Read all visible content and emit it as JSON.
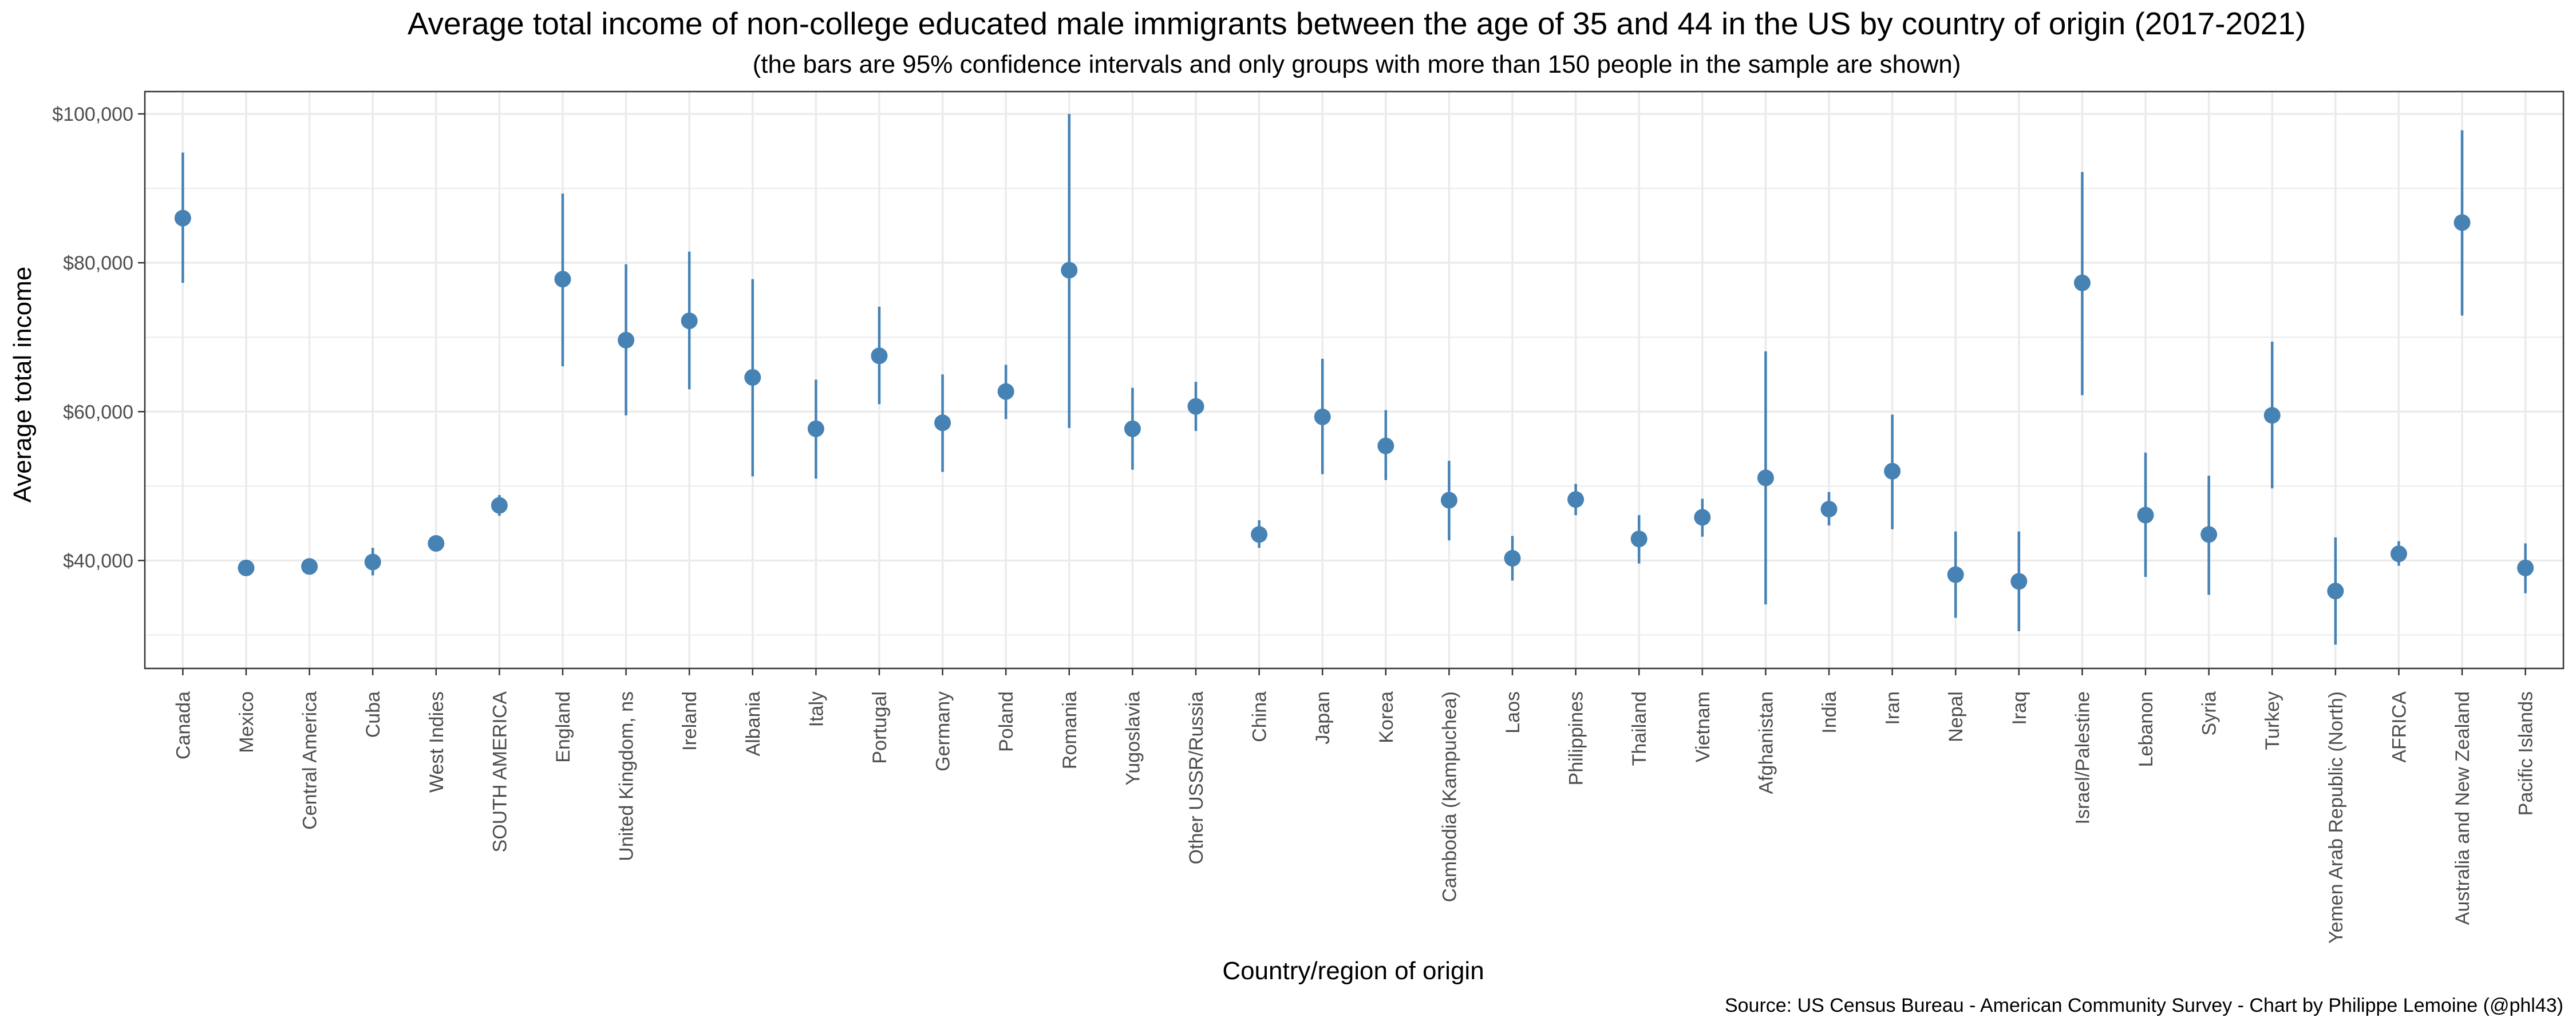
{
  "chart_data": {
    "type": "scatter",
    "subtype": "point-range",
    "title": "Average total income of non-college educated male immigrants between the age of 35 and 44 in the US by country of origin (2017-2021)",
    "subtitle": "(the bars are 95% confidence intervals and only groups with more than 150 people in the sample are shown)",
    "xlabel": "Country/region of origin",
    "ylabel": "Average total income",
    "caption": "Source: US Census Bureau - American Community Survey - Chart by Philippe Lemoine (@phl43)",
    "ylim": [
      25500,
      103000
    ],
    "y_ticks": [
      40000,
      60000,
      80000,
      100000
    ],
    "y_tick_labels": [
      "$40,000",
      "$60,000",
      "$80,000",
      "$100,000"
    ],
    "grid": true,
    "legend": "none",
    "colors": {
      "point": "#4682b4",
      "errorbar": "#4682b4",
      "grid": "#ebebeb",
      "panel_border": "#333333",
      "tick_text": "#4d4d4d"
    },
    "categories": [
      "Canada",
      "Mexico",
      "Central America",
      "Cuba",
      "West Indies",
      "SOUTH AMERICA",
      "England",
      "United Kingdom, ns",
      "Ireland",
      "Albania",
      "Italy",
      "Portugal",
      "Germany",
      "Poland",
      "Romania",
      "Yugoslavia",
      "Other USSR/Russia",
      "China",
      "Japan",
      "Korea",
      "Cambodia (Kampuchea)",
      "Laos",
      "Philippines",
      "Thailand",
      "Vietnam",
      "Afghanistan",
      "India",
      "Iran",
      "Nepal",
      "Iraq",
      "Israel/Palestine",
      "Lebanon",
      "Syria",
      "Turkey",
      "Yemen Arab Republic (North)",
      "AFRICA",
      "Australia and New Zealand",
      "Pacific Islands"
    ],
    "series": [
      {
        "values": [
          86000,
          39000,
          39200,
          39800,
          42300,
          47400,
          77800,
          69600,
          72200,
          64600,
          57700,
          67500,
          58500,
          62700,
          79000,
          57700,
          60700,
          43500,
          59300,
          55400,
          48100,
          40300,
          48200,
          42900,
          45800,
          51100,
          46900,
          52000,
          38100,
          37200,
          77300,
          46100,
          43500,
          59500,
          35900,
          40900,
          85400,
          39000
        ],
        "lower": [
          77300,
          38600,
          38800,
          38000,
          41900,
          46000,
          66100,
          59500,
          63000,
          51300,
          51000,
          61000,
          51900,
          59000,
          57800,
          52200,
          57400,
          41700,
          51600,
          50800,
          42700,
          37300,
          46100,
          39600,
          43200,
          34100,
          44700,
          44200,
          32300,
          30500,
          62200,
          37800,
          35400,
          49700,
          28700,
          39300,
          72900,
          35600
        ],
        "upper": [
          94800,
          39400,
          39600,
          41700,
          42700,
          48800,
          89300,
          79800,
          81500,
          77800,
          64300,
          74100,
          65000,
          66300,
          100000,
          63200,
          64000,
          45400,
          67100,
          60200,
          53400,
          43300,
          50300,
          46100,
          48300,
          68100,
          49200,
          59600,
          43900,
          43900,
          92200,
          54500,
          51400,
          69400,
          43100,
          42600,
          97800,
          42300
        ]
      }
    ]
  }
}
